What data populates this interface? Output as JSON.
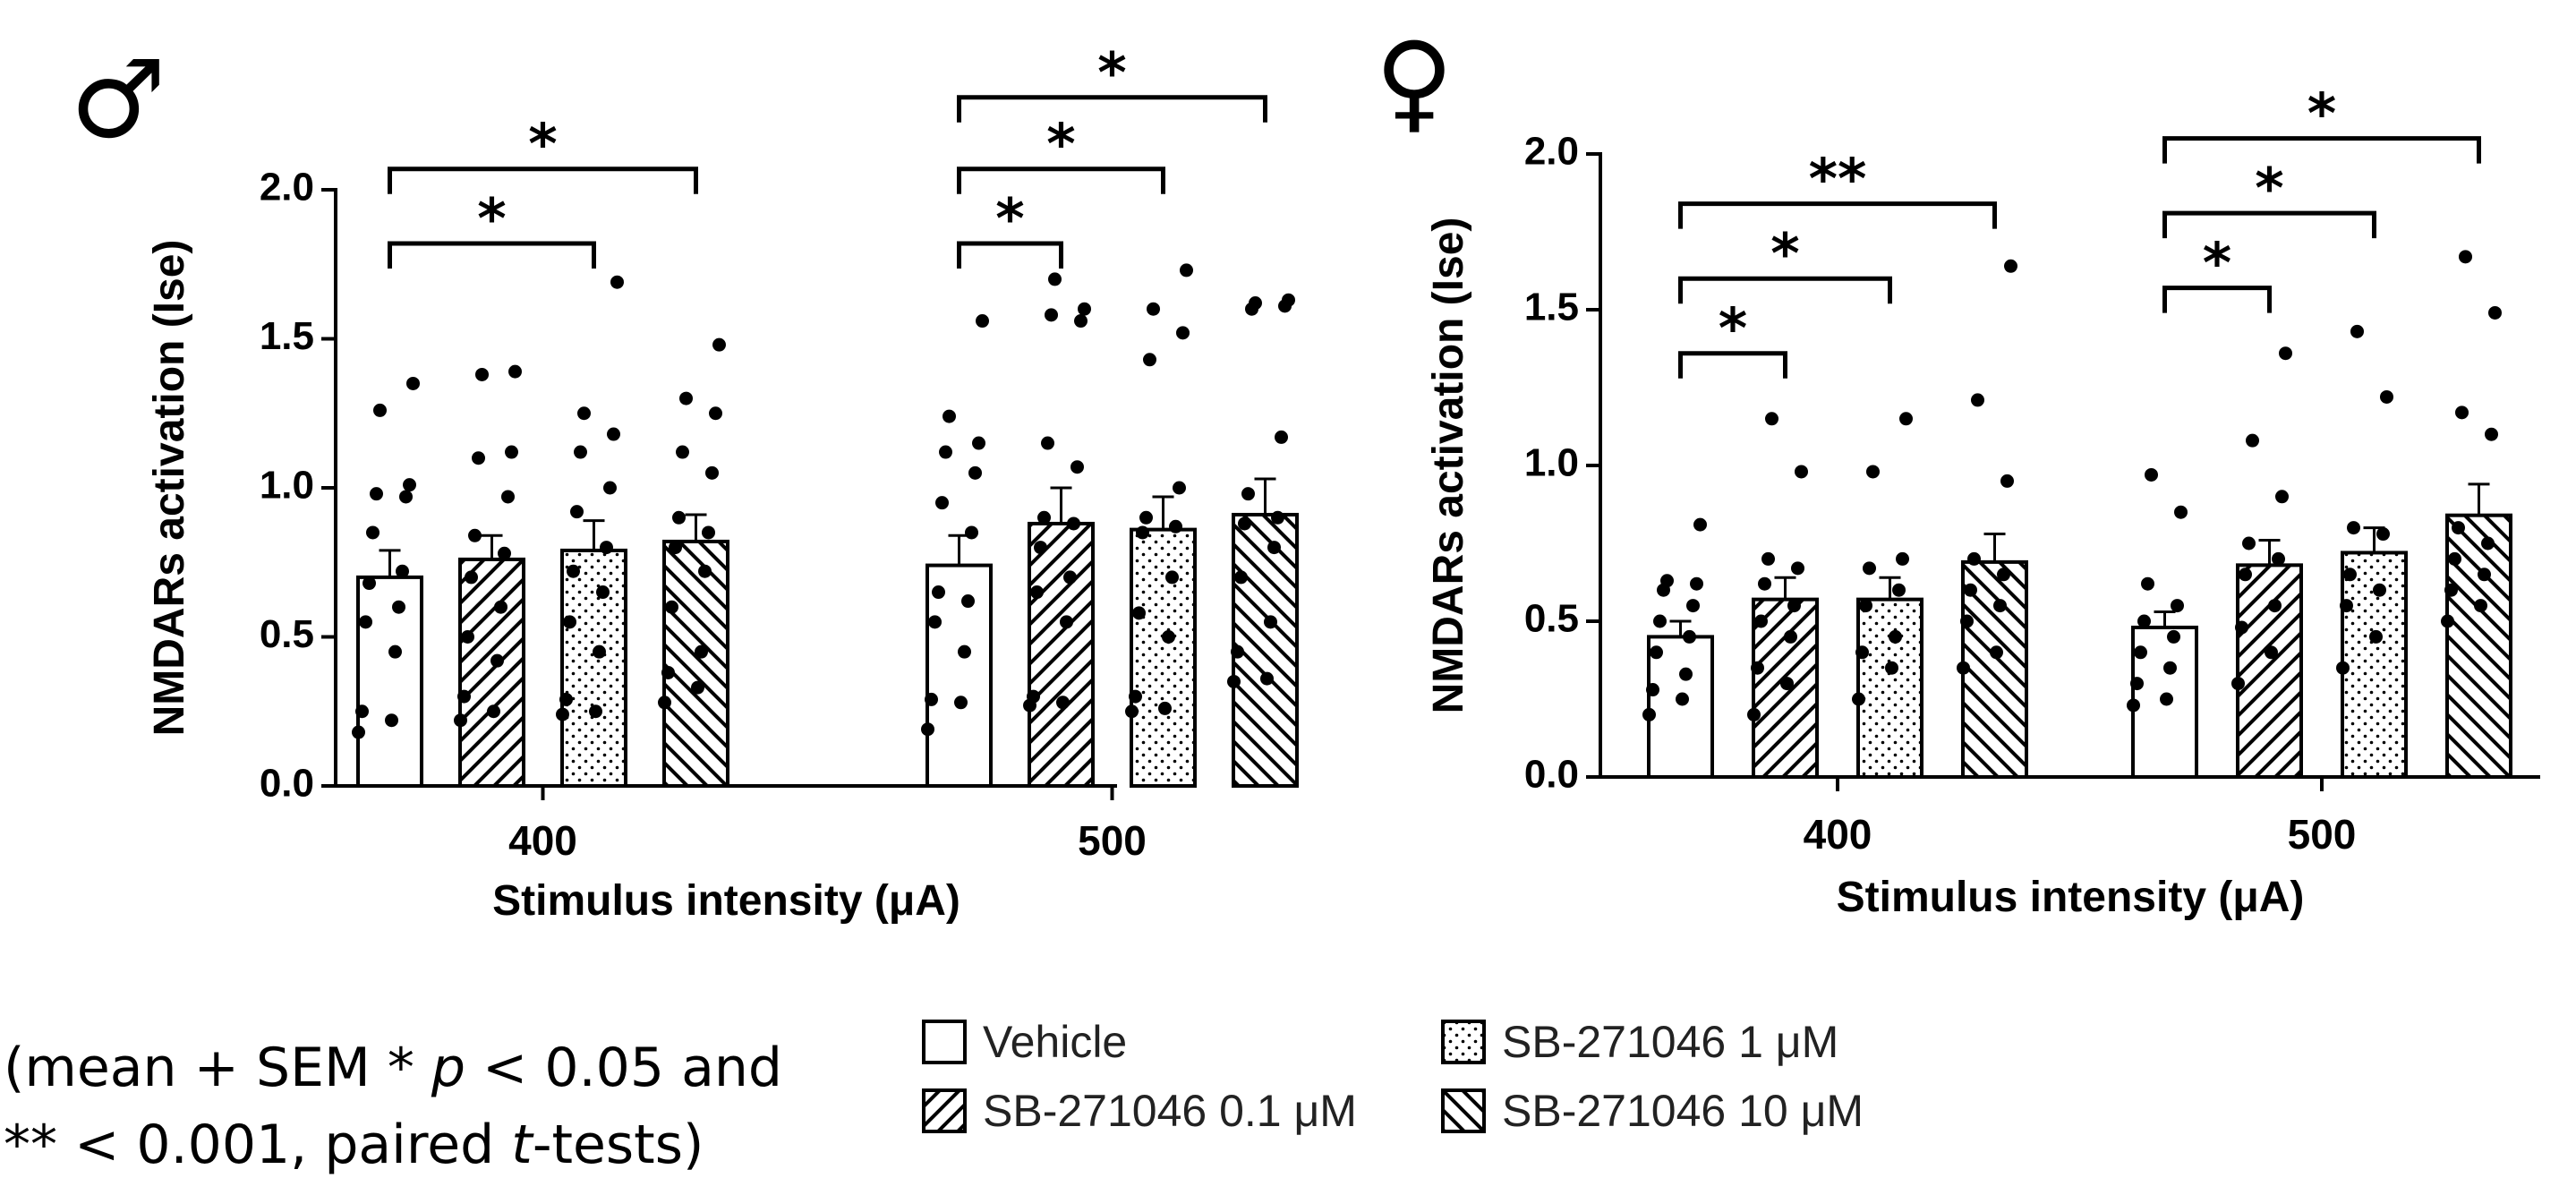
{
  "chart_data": [
    {
      "type": "bar",
      "symbol": "♂",
      "title": "",
      "xlabel": "Stimulus intensity (μA)",
      "ylabel": "NMDARs activation (Ise)",
      "ylim": [
        0,
        2.0
      ],
      "yticks": [
        "0.0",
        "0.5",
        "1.0",
        "1.5",
        "2.0"
      ],
      "categories": [
        "400",
        "500"
      ],
      "series": [
        {
          "name": "Vehicle",
          "values": [
            0.7,
            0.74
          ],
          "sem": [
            0.09,
            0.1
          ]
        },
        {
          "name": "SB-271046 0.1 μM",
          "values": [
            0.76,
            0.88
          ],
          "sem": [
            0.08,
            0.12
          ]
        },
        {
          "name": "SB-271046 1 μM",
          "values": [
            0.79,
            0.86
          ],
          "sem": [
            0.1,
            0.11
          ]
        },
        {
          "name": "SB-271046 10 μM",
          "values": [
            0.82,
            0.91
          ],
          "sem": [
            0.09,
            0.12
          ]
        }
      ],
      "points": [
        [
          [
            0.18,
            0.22,
            0.25,
            0.45,
            0.55,
            0.6,
            0.68,
            0.72,
            0.85,
            0.97,
            0.98,
            1.01,
            1.26,
            1.35
          ],
          [
            0.19,
            0.28,
            0.29,
            0.45,
            0.55,
            0.62,
            0.65,
            0.85,
            0.95,
            1.05,
            1.12,
            1.15,
            1.24,
            1.56
          ]
        ],
        [
          [
            0.22,
            0.25,
            0.3,
            0.42,
            0.5,
            0.6,
            0.7,
            0.78,
            0.84,
            0.97,
            1.1,
            1.12,
            1.38,
            1.39
          ],
          [
            0.27,
            0.28,
            0.3,
            0.55,
            0.65,
            0.7,
            0.8,
            0.88,
            0.9,
            1.07,
            1.15,
            1.56,
            1.58,
            1.6,
            1.7
          ]
        ],
        [
          [
            0.24,
            0.25,
            0.29,
            0.45,
            0.55,
            0.65,
            0.72,
            0.8,
            0.92,
            1.0,
            1.12,
            1.18,
            1.25,
            1.69
          ],
          [
            0.25,
            0.26,
            0.3,
            0.5,
            0.58,
            0.7,
            0.85,
            0.87,
            0.9,
            1.0,
            1.43,
            1.52,
            1.6,
            1.73
          ]
        ],
        [
          [
            0.28,
            0.33,
            0.38,
            0.45,
            0.6,
            0.72,
            0.8,
            0.85,
            0.9,
            1.05,
            1.12,
            1.25,
            1.3,
            1.48
          ],
          [
            0.35,
            0.36,
            0.45,
            0.55,
            0.7,
            0.8,
            0.88,
            0.9,
            0.98,
            1.17,
            1.6,
            1.61,
            1.62,
            1.63
          ]
        ]
      ],
      "significance": [
        {
          "group": 0,
          "from": 0,
          "to": 2,
          "label": "*",
          "level": 1.82
        },
        {
          "group": 0,
          "from": 0,
          "to": 3,
          "label": "*",
          "level": 2.07
        },
        {
          "group": 1,
          "from": 0,
          "to": 1,
          "label": "*",
          "level": 1.82
        },
        {
          "group": 1,
          "from": 0,
          "to": 2,
          "label": "*",
          "level": 2.07
        },
        {
          "group": 1,
          "from": 0,
          "to": 3,
          "label": "*",
          "level": 2.31
        }
      ]
    },
    {
      "type": "bar",
      "symbol": "♀",
      "title": "",
      "xlabel": "Stimulus intensity (μA)",
      "ylabel": "NMDARs activation (Ise)",
      "ylim": [
        0,
        2.0
      ],
      "yticks": [
        "0.0",
        "0.5",
        "1.0",
        "1.5",
        "2.0"
      ],
      "categories": [
        "400",
        "500"
      ],
      "series": [
        {
          "name": "Vehicle",
          "values": [
            0.45,
            0.48
          ],
          "sem": [
            0.05,
            0.05
          ]
        },
        {
          "name": "SB-271046 0.1 μM",
          "values": [
            0.57,
            0.68
          ],
          "sem": [
            0.07,
            0.08
          ]
        },
        {
          "name": "SB-271046 1 μM",
          "values": [
            0.57,
            0.72
          ],
          "sem": [
            0.07,
            0.08
          ]
        },
        {
          "name": "SB-271046 10 μM",
          "values": [
            0.69,
            0.84
          ],
          "sem": [
            0.09,
            0.1
          ]
        }
      ],
      "points": [
        [
          [
            0.2,
            0.25,
            0.28,
            0.33,
            0.4,
            0.45,
            0.5,
            0.55,
            0.6,
            0.62,
            0.63,
            0.81
          ],
          [
            0.23,
            0.25,
            0.3,
            0.35,
            0.4,
            0.45,
            0.5,
            0.55,
            0.62,
            0.85,
            0.97
          ]
        ],
        [
          [
            0.2,
            0.3,
            0.35,
            0.45,
            0.5,
            0.55,
            0.62,
            0.67,
            0.7,
            0.98,
            1.15
          ],
          [
            0.3,
            0.4,
            0.48,
            0.55,
            0.65,
            0.7,
            0.75,
            0.9,
            1.08,
            1.36
          ]
        ],
        [
          [
            0.25,
            0.35,
            0.4,
            0.45,
            0.55,
            0.6,
            0.67,
            0.7,
            0.98,
            1.15
          ],
          [
            0.35,
            0.45,
            0.55,
            0.6,
            0.65,
            0.78,
            0.8,
            1.22,
            1.43
          ]
        ],
        [
          [
            0.35,
            0.4,
            0.5,
            0.55,
            0.6,
            0.65,
            0.7,
            0.95,
            1.21,
            1.64
          ],
          [
            0.5,
            0.55,
            0.6,
            0.65,
            0.7,
            0.75,
            0.8,
            1.1,
            1.17,
            1.49,
            1.67
          ]
        ]
      ],
      "significance": [
        {
          "group": 0,
          "from": 0,
          "to": 1,
          "label": "*",
          "level": 1.36
        },
        {
          "group": 0,
          "from": 0,
          "to": 2,
          "label": "*",
          "level": 1.6
        },
        {
          "group": 0,
          "from": 0,
          "to": 3,
          "label": "**",
          "level": 1.84
        },
        {
          "group": 1,
          "from": 0,
          "to": 1,
          "label": "*",
          "level": 1.57
        },
        {
          "group": 1,
          "from": 0,
          "to": 2,
          "label": "*",
          "level": 1.81
        },
        {
          "group": 1,
          "from": 0,
          "to": 3,
          "label": "*",
          "level": 2.05
        }
      ]
    }
  ],
  "legend": {
    "items": [
      {
        "label": "Vehicle",
        "pattern": "white"
      },
      {
        "label": "SB-271046 0.1 μM",
        "pattern": "hatch"
      },
      {
        "label": "SB-271046 1 μM",
        "pattern": "dots"
      },
      {
        "label": "SB-271046 10 μM",
        "pattern": "backhatch"
      }
    ]
  },
  "footnote": {
    "line1_pre": "(mean + SEM * ",
    "line1_p": "p",
    "line1_post": " < 0.05 and",
    "line2_pre": "** < 0.001, paired ",
    "line2_t": "t",
    "line2_post": "-tests)"
  }
}
